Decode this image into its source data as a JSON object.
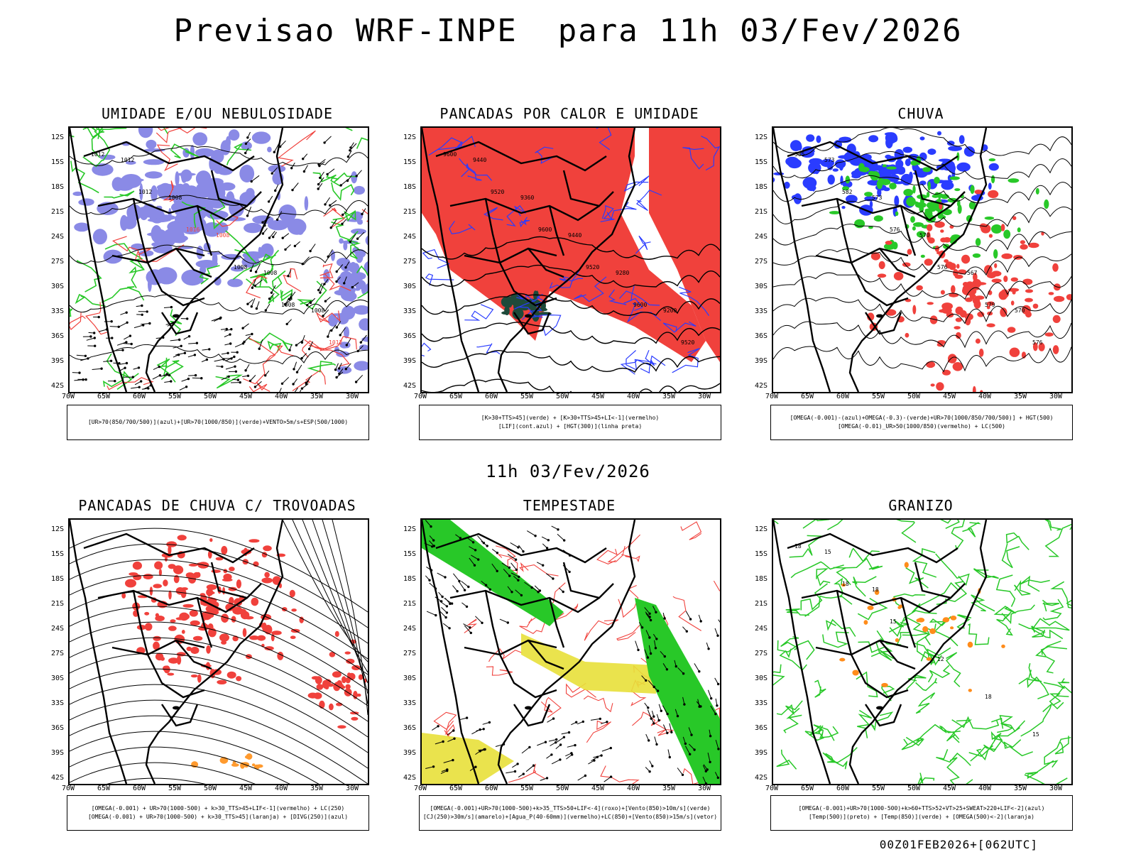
{
  "title": "Previsao WRF-INPE  para 11h 03/Fev/2026",
  "mid_title": "11h 03/Fev/2026",
  "footer": "00Z01FEB2026+[062UTC]",
  "colors": {
    "red": "#f0413c",
    "blue": "#2a3cff",
    "green": "#28c828",
    "purple": "#8a8ae6",
    "yellow": "#e8e03a",
    "darkgreen": "#1e4a3a"
  },
  "chart_data": [
    {
      "type": "map",
      "title": "UMIDADE E/OU NEBULOSIDADE",
      "legend": [
        "[UR>70(850/700/500)](azul)+[UR>70(1000/850)](verde)+VENTO>5m/s+ESP(500/1000)"
      ],
      "ylabels": [
        "12S",
        "15S",
        "18S",
        "21S",
        "24S",
        "27S",
        "30S",
        "33S",
        "36S",
        "39S",
        "42S"
      ],
      "xlabels": [
        "70W",
        "65W",
        "60W",
        "55W",
        "50W",
        "45W",
        "40W",
        "35W",
        "30W"
      ],
      "contour_labels": [
        "1012",
        "1012",
        "1016",
        "1008",
        "1008",
        "1012",
        "1012",
        "1008",
        "1008",
        "1008",
        "1008"
      ]
    },
    {
      "type": "map",
      "title": "PANCADAS POR CALOR E UMIDADE",
      "legend": [
        "[K>30+TTS>45](verde)  +  [K>30+TTS>45+LI<-1](vermelho)",
        "[LIF](cont.azul)  +  [HGT(300)](linha preta)"
      ],
      "ylabels": [
        "12S",
        "15S",
        "18S",
        "21S",
        "24S",
        "27S",
        "30S",
        "33S",
        "36S",
        "39S",
        "42S"
      ],
      "xlabels": [
        "70W",
        "65W",
        "60W",
        "55W",
        "50W",
        "45W",
        "40W",
        "35W",
        "30W"
      ],
      "contour_labels": [
        "9600",
        "9520",
        "9600",
        "9520",
        "9600",
        "9520",
        "9440",
        "9360",
        "9440",
        "9280",
        "9200"
      ]
    },
    {
      "type": "map",
      "title": "CHUVA",
      "legend": [
        "[OMEGA(-0.001)-(azul)+OMEGA(-0.3)-(verde)+UR>70(1000/850/700/500)]  +  HGT(500)",
        "[OMEGA(-0.01)_UR>50(1000/850)(vermelho)  +  LC(500)"
      ],
      "ylabels": [
        "12S",
        "15S",
        "18S",
        "21S",
        "24S",
        "27S",
        "30S",
        "33S",
        "36S",
        "39S",
        "42S"
      ],
      "xlabels": [
        "70W",
        "65W",
        "60W",
        "55W",
        "50W",
        "45W",
        "40W",
        "35W",
        "30W"
      ],
      "contour_labels": [
        "585",
        "582",
        "576",
        "576",
        "579",
        "576",
        "573",
        "573",
        "570",
        "567",
        "570"
      ]
    },
    {
      "type": "map",
      "title": "PANCADAS DE CHUVA C/ TROVOADAS",
      "legend": [
        "[OMEGA(-0.001)  +  UR>70(1000-500)  +  k>30_TTS>45+LIF<-1](vermelho)  +  LC(250)",
        "[OMEGA(-0.001)  +  UR>70(1000-500)  +  k>30_TTS>45](laranja)  +  [DIVG(250)](azul)"
      ],
      "ylabels": [
        "12S",
        "15S",
        "18S",
        "21S",
        "24S",
        "27S",
        "30S",
        "33S",
        "36S",
        "39S",
        "42S"
      ],
      "xlabels": [
        "70W",
        "65W",
        "60W",
        "55W",
        "50W",
        "45W",
        "40W",
        "35W",
        "30W"
      ],
      "contour_labels": []
    },
    {
      "type": "map",
      "title": "TEMPESTADE",
      "legend": [
        "[OMEGA(-0.001)+UR>70(1000-500)+k>35_TTS>50+LIF<-4](roxo)+[Vento(850)>10m/s](verde)",
        "[CJ(250)>30m/s](amarelo)+[Agua_P(40-60mm)](vermelho)+LC(850)+[Vento(850)>15m/s](vetor)"
      ],
      "ylabels": [
        "12S",
        "15S",
        "18S",
        "21S",
        "24S",
        "27S",
        "30S",
        "33S",
        "36S",
        "39S",
        "42S"
      ],
      "xlabels": [
        "70W",
        "65W",
        "60W",
        "55W",
        "50W",
        "45W",
        "40W",
        "35W",
        "30W"
      ],
      "contour_labels": []
    },
    {
      "type": "map",
      "title": "GRANIZO",
      "legend": [
        "[OMEGA(-0.001)+UR>70(1000-500)+k>60+TTS>52+VT>25+SWEAT>220+LIF<-2](azul)",
        "[Temp(500)](preto)  +  [Temp(850)](verde)  +  [OMEGA(500)<-2](laranja)"
      ],
      "ylabels": [
        "12S",
        "15S",
        "18S",
        "21S",
        "24S",
        "27S",
        "30S",
        "33S",
        "36S",
        "39S",
        "42S"
      ],
      "xlabels": [
        "70W",
        "65W",
        "60W",
        "55W",
        "50W",
        "45W",
        "40W",
        "35W",
        "30W"
      ],
      "contour_labels": [
        "18",
        "18",
        "15",
        "12",
        "18",
        "15",
        "15",
        "18"
      ]
    }
  ]
}
